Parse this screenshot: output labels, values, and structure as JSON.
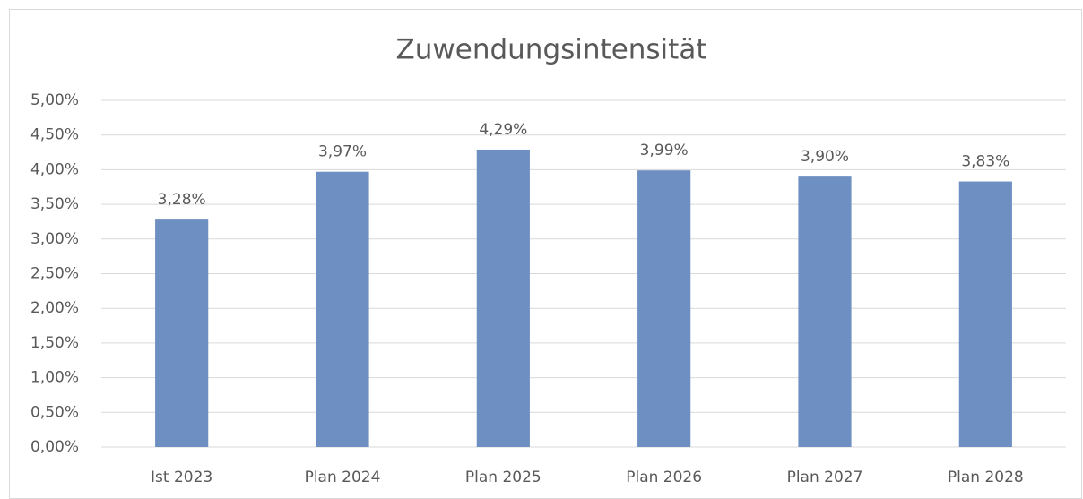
{
  "chart_data": {
    "type": "bar",
    "title": "Zuwendungsintensität",
    "categories": [
      "Ist 2023",
      "Plan 2024",
      "Plan 2025",
      "Plan 2026",
      "Plan 2027",
      "Plan 2028"
    ],
    "values": [
      3.28,
      3.97,
      4.29,
      3.99,
      3.9,
      3.83
    ],
    "value_labels": [
      "3,28%",
      "3,97%",
      "4,29%",
      "3,99%",
      "3,90%",
      "3,83%"
    ],
    "color": "#6e8fc1",
    "ylim": [
      0,
      5
    ],
    "yticks": [
      {
        "value": 0,
        "label": "0,00%"
      },
      {
        "value": 0.5,
        "label": "0,50%"
      },
      {
        "value": 1,
        "label": "1,00%"
      },
      {
        "value": 1.5,
        "label": "1,50%"
      },
      {
        "value": 2,
        "label": "2,00%"
      },
      {
        "value": 2.5,
        "label": "2,50%"
      },
      {
        "value": 3,
        "label": "3,00%"
      },
      {
        "value": 3.5,
        "label": "3,50%"
      },
      {
        "value": 4,
        "label": "4,00%"
      },
      {
        "value": 4.5,
        "label": "4,50%"
      },
      {
        "value": 5,
        "label": "5,00%"
      }
    ],
    "grid": true
  }
}
